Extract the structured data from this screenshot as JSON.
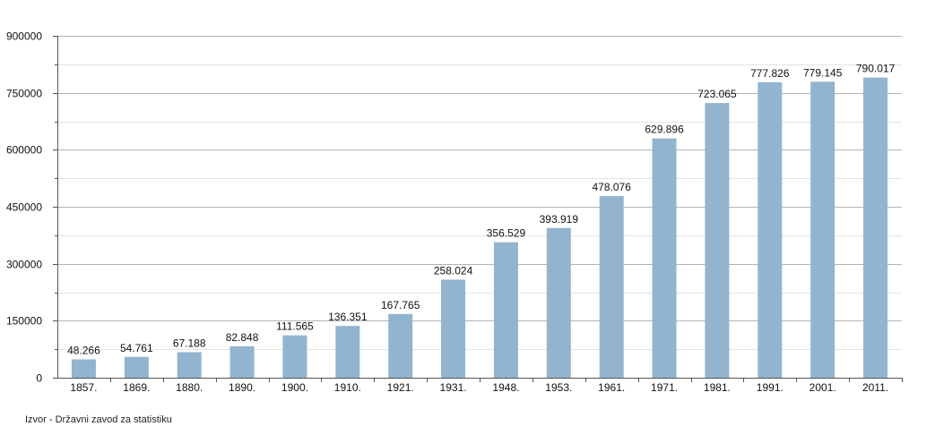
{
  "chart_data": {
    "type": "bar",
    "categories": [
      "1857.",
      "1869.",
      "1880.",
      "1890.",
      "1900.",
      "1910.",
      "1921.",
      "1931.",
      "1948.",
      "1953.",
      "1961.",
      "1971.",
      "1981.",
      "1991.",
      "2001.",
      "2011."
    ],
    "values": [
      48266,
      54761,
      67188,
      82848,
      111565,
      136351,
      167765,
      258024,
      356529,
      393919,
      478076,
      629896,
      723065,
      777826,
      779145,
      790017
    ],
    "data_labels": [
      "48.266",
      "54.761",
      "67.188",
      "82.848",
      "111.565",
      "136.351",
      "167.765",
      "258.024",
      "356.529",
      "393.919",
      "478.076",
      "629.896",
      "723.065",
      "777.826",
      "779.145",
      "790.017"
    ],
    "y_ticks": [
      0,
      150000,
      300000,
      450000,
      600000,
      750000,
      900000
    ],
    "y_tick_labels": [
      "0",
      "150000",
      "300000",
      "450000",
      "600000",
      "750000",
      "900000"
    ],
    "ylim": [
      0,
      900000
    ],
    "grid": true,
    "legend": "none",
    "title": "",
    "xlabel": "",
    "ylabel": "",
    "bar_color": "#92b4cf",
    "grid_major_color": "#b3b3b3",
    "grid_minor_color": "#e3e3e3"
  },
  "source_note": "Izvor - Državni zavod za statistiku"
}
